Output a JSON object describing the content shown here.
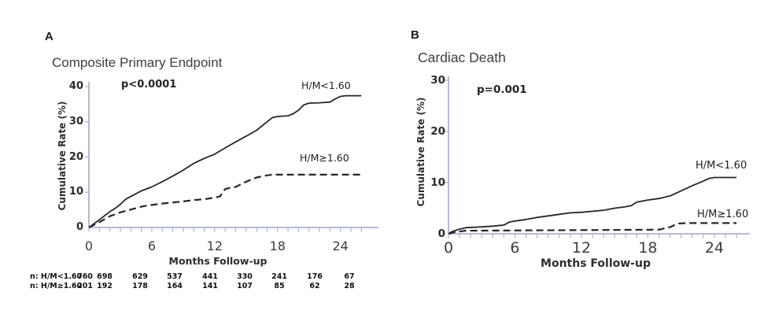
{
  "colors": {
    "curve": "#262626",
    "axis": "#a9b2d0",
    "text": "#3a3a3a"
  },
  "chart_data": [
    {
      "type": "line",
      "panel_label": "A",
      "title": "Composite Primary Endpoint",
      "p_value": "p<0.0001",
      "ylabel": "Cumulative Rate (%)",
      "xlabel": "Months Follow-up",
      "ylim": [
        0,
        40
      ],
      "xlim": [
        0,
        26
      ],
      "yticks": [
        0,
        10,
        20,
        30,
        40
      ],
      "xticks": [
        0,
        6,
        12,
        18,
        24
      ],
      "minor_x_tick_every_month": 1,
      "legend_position": "labels-on-curves",
      "grid": false,
      "series": [
        {
          "name": "H/M<1.60",
          "line": "solid",
          "points": [
            [
              0,
              0
            ],
            [
              0.5,
              1.1
            ],
            [
              1,
              2.2
            ],
            [
              2,
              4.5
            ],
            [
              2.5,
              5.4
            ],
            [
              3,
              6.6
            ],
            [
              3.5,
              8
            ],
            [
              4,
              8.8
            ],
            [
              5,
              10.4
            ],
            [
              6,
              11.5
            ],
            [
              7,
              13
            ],
            [
              8,
              14.6
            ],
            [
              9,
              16.3
            ],
            [
              10,
              18.2
            ],
            [
              11,
              19.6
            ],
            [
              11.5,
              20.2
            ],
            [
              12,
              20.8
            ],
            [
              13,
              22.6
            ],
            [
              14,
              24.3
            ],
            [
              15,
              25.9
            ],
            [
              16,
              27.6
            ],
            [
              17,
              30
            ],
            [
              17.5,
              31.2
            ],
            [
              18,
              31.5
            ],
            [
              19,
              31.7
            ],
            [
              19.5,
              32.3
            ],
            [
              20,
              33.3
            ],
            [
              20.5,
              34.8
            ],
            [
              21,
              35.3
            ],
            [
              22,
              35.4
            ],
            [
              23,
              35.6
            ],
            [
              23.5,
              36.5
            ],
            [
              24,
              37.2
            ],
            [
              24.5,
              37.4
            ],
            [
              26,
              37.4
            ]
          ]
        },
        {
          "name": "H/M≥1.60",
          "line": "dashed",
          "points": [
            [
              0,
              0
            ],
            [
              1,
              1.5
            ],
            [
              2,
              3.2
            ],
            [
              3,
              4.3
            ],
            [
              4,
              5.1
            ],
            [
              5,
              5.9
            ],
            [
              5.5,
              6.2
            ],
            [
              6.5,
              6.6
            ],
            [
              7,
              6.8
            ],
            [
              8,
              7.1
            ],
            [
              9,
              7.4
            ],
            [
              10,
              7.8
            ],
            [
              11,
              8
            ],
            [
              12,
              8.5
            ],
            [
              12.5,
              8.8
            ],
            [
              13,
              10.9
            ],
            [
              13.5,
              11.3
            ],
            [
              14,
              11.5
            ],
            [
              15,
              13
            ],
            [
              16,
              14.2
            ],
            [
              17,
              14.8
            ],
            [
              17.5,
              15
            ],
            [
              26,
              15
            ]
          ]
        }
      ],
      "risk_table": {
        "rows": [
          {
            "label": "n: H/M<1.60",
            "counts": [
              "760",
              "698",
              "629",
              "537",
              "441",
              "330",
              "241",
              "176",
              "67"
            ]
          },
          {
            "label": "n: H/M≥1.60",
            "counts": [
              "201",
              "192",
              "178",
              "164",
              "141",
              "107",
              "85",
              "62",
              "28"
            ]
          }
        ]
      }
    },
    {
      "type": "line",
      "panel_label": "B",
      "title": "Cardiac Death",
      "p_value": "p=0.001",
      "ylabel": "Cumulative Rate (%)",
      "xlabel": "Months Follow-up",
      "ylim": [
        0,
        30
      ],
      "xlim": [
        0,
        26
      ],
      "yticks": [
        0,
        10,
        20,
        30
      ],
      "xticks": [
        0,
        6,
        12,
        18,
        24
      ],
      "minor_x_tick_every_month": 1,
      "legend_position": "labels-on-curves",
      "grid": false,
      "series": [
        {
          "name": "H/M<1.60",
          "line": "solid",
          "points": [
            [
              0,
              0
            ],
            [
              0.3,
              0.4
            ],
            [
              1,
              0.9
            ],
            [
              1.6,
              1.2
            ],
            [
              2.5,
              1.3
            ],
            [
              4,
              1.5
            ],
            [
              5,
              1.7
            ],
            [
              5.5,
              2.3
            ],
            [
              6,
              2.5
            ],
            [
              7,
              2.8
            ],
            [
              8,
              3.2
            ],
            [
              9,
              3.5
            ],
            [
              10,
              3.8
            ],
            [
              11,
              4.1
            ],
            [
              12,
              4.2
            ],
            [
              14,
              4.6
            ],
            [
              15,
              5
            ],
            [
              16,
              5.3
            ],
            [
              16.5,
              5.5
            ],
            [
              17,
              6.2
            ],
            [
              18,
              6.6
            ],
            [
              19,
              6.9
            ],
            [
              20,
              7.4
            ],
            [
              21,
              8.4
            ],
            [
              22,
              9.4
            ],
            [
              23,
              10.3
            ],
            [
              23.5,
              10.8
            ],
            [
              24,
              11
            ],
            [
              26,
              11
            ]
          ]
        },
        {
          "name": "H/M≥1.60",
          "line": "dashed",
          "points": [
            [
              0,
              0
            ],
            [
              0.5,
              0.3
            ],
            [
              1.5,
              0.6
            ],
            [
              19,
              0.8
            ],
            [
              20,
              1.3
            ],
            [
              20.7,
              2
            ],
            [
              21.5,
              2.1
            ],
            [
              26,
              2.1
            ]
          ]
        }
      ]
    }
  ]
}
